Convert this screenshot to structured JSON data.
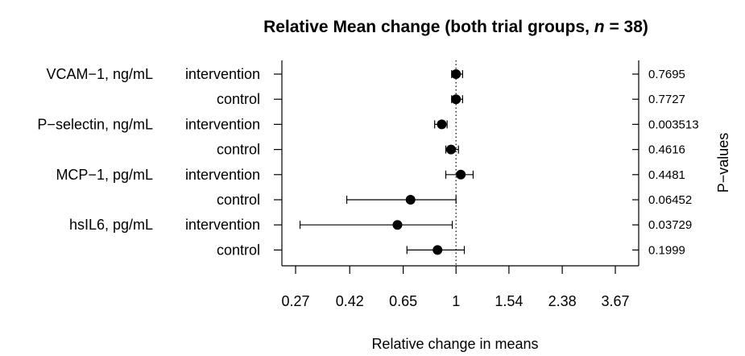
{
  "chart_data": {
    "type": "forest",
    "title_main": "Relative Mean change (both trial groups, ",
    "title_n": "n",
    "title_end": " = 38)",
    "xlabel": "Relative change in means",
    "right_axis_label": "P−values",
    "x_scale": "log",
    "xlim": [
      0.27,
      3.67
    ],
    "x_ticks": [
      "0.27",
      "0.42",
      "0.65",
      "1",
      "1.54",
      "2.38",
      "3.67"
    ],
    "x_tick_values": [
      0.27,
      0.42,
      0.65,
      1,
      1.54,
      2.38,
      3.67
    ],
    "reference_line": 1,
    "rows": [
      {
        "marker": "VCAM−1, ng/mL",
        "group": "intervention",
        "estimate": 1.0,
        "ci_low": 0.965,
        "ci_high": 1.055,
        "p_value": "0.7695"
      },
      {
        "marker": "",
        "group": "control",
        "estimate": 1.0,
        "ci_low": 0.965,
        "ci_high": 1.055,
        "p_value": "0.7727"
      },
      {
        "marker": "P−selectin, ng/mL",
        "group": "intervention",
        "estimate": 0.89,
        "ci_low": 0.84,
        "ci_high": 0.93,
        "p_value": "0.003513"
      },
      {
        "marker": "",
        "group": "control",
        "estimate": 0.96,
        "ci_low": 0.92,
        "ci_high": 1.02,
        "p_value": "0.4616"
      },
      {
        "marker": "MCP−1, pg/mL",
        "group": "intervention",
        "estimate": 1.04,
        "ci_low": 0.92,
        "ci_high": 1.15,
        "p_value": "0.4481"
      },
      {
        "marker": "",
        "group": "control",
        "estimate": 0.69,
        "ci_low": 0.41,
        "ci_high": 1.0,
        "p_value": "0.06452"
      },
      {
        "marker": "hsIL6, pg/mL",
        "group": "intervention",
        "estimate": 0.62,
        "ci_low": 0.28,
        "ci_high": 0.97,
        "p_value": "0.03729"
      },
      {
        "marker": "",
        "group": "control",
        "estimate": 0.86,
        "ci_low": 0.67,
        "ci_high": 1.07,
        "p_value": "0.1999"
      }
    ]
  }
}
